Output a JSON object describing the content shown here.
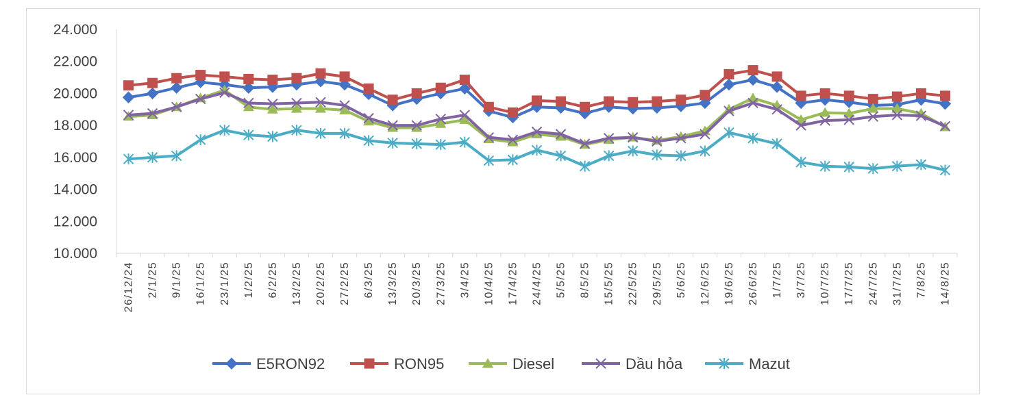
{
  "chart_data": {
    "type": "line",
    "title": "",
    "xlabel": "",
    "ylabel": "",
    "ylim": [
      10000,
      24000
    ],
    "yticks": [
      "10.000",
      "12.000",
      "14.000",
      "16.000",
      "18.000",
      "20.000",
      "22.000",
      "24.000"
    ],
    "ytick_values": [
      10000,
      12000,
      14000,
      16000,
      18000,
      20000,
      22000,
      24000
    ],
    "grid": false,
    "legend_position": "bottom",
    "categories": [
      "26/12/24",
      "2/1/25",
      "9/1/25",
      "16/1/25",
      "23/1/25",
      "1/2/25",
      "6/2/25",
      "13/2/25",
      "20/2/25",
      "27/2/25",
      "6/3/25",
      "13/3/25",
      "20/3/25",
      "27/3/25",
      "3/4/25",
      "10/4/25",
      "17/4/25",
      "24/4/25",
      "5/5/25",
      "8/5/25",
      "15/5/25",
      "22/5/25",
      "29/5/25",
      "5/6/25",
      "12/6/25",
      "19/6/25",
      "26/6/25",
      "1/7/25",
      "3/7/25",
      "10/7/25",
      "17/7/25",
      "24/7/25",
      "31/7/25",
      "7/8/25",
      "14/8/25"
    ],
    "series": [
      {
        "name": "E5RON92",
        "color": "#4472c4",
        "marker": "diamond",
        "values": [
          19750,
          20000,
          20350,
          20700,
          20550,
          20350,
          20400,
          20550,
          20750,
          20550,
          19950,
          19250,
          19650,
          20000,
          20300,
          18900,
          18500,
          19150,
          19100,
          18750,
          19150,
          19050,
          19100,
          19200,
          19400,
          20550,
          20850,
          20400,
          19400,
          19600,
          19450,
          19250,
          19300,
          19600,
          19350
        ]
      },
      {
        "name": "RON95",
        "color": "#c0504d",
        "marker": "square",
        "values": [
          20500,
          20650,
          20950,
          21150,
          21050,
          20900,
          20850,
          20950,
          21250,
          21050,
          20300,
          19600,
          20000,
          20350,
          20850,
          19150,
          18800,
          19550,
          19500,
          19150,
          19500,
          19450,
          19500,
          19600,
          19900,
          21200,
          21450,
          21050,
          19850,
          20000,
          19850,
          19650,
          19800,
          20000,
          19850
        ]
      },
      {
        "name": "Diesel",
        "color": "#9bbb59",
        "marker": "triangle",
        "values": [
          18550,
          18650,
          19150,
          19700,
          20200,
          19150,
          19000,
          19050,
          19050,
          18950,
          18250,
          17850,
          17850,
          18100,
          18350,
          17150,
          16950,
          17450,
          17300,
          16800,
          17100,
          17250,
          17050,
          17300,
          17650,
          19000,
          19700,
          19250,
          18350,
          18800,
          18750,
          19050,
          19050,
          18750,
          17900
        ]
      },
      {
        "name": "Dầu hỏa",
        "color": "#8064a2",
        "marker": "x",
        "values": [
          18650,
          18750,
          19150,
          19650,
          20050,
          19400,
          19350,
          19400,
          19450,
          19250,
          18450,
          18000,
          18000,
          18400,
          18650,
          17250,
          17100,
          17600,
          17450,
          16850,
          17200,
          17250,
          17000,
          17200,
          17450,
          18900,
          19400,
          19000,
          18000,
          18300,
          18350,
          18550,
          18650,
          18600,
          17950
        ]
      },
      {
        "name": "Mazut",
        "color": "#4bacc6",
        "marker": "asterisk",
        "values": [
          15900,
          16000,
          16100,
          17100,
          17700,
          17400,
          17300,
          17700,
          17500,
          17500,
          17050,
          16900,
          16850,
          16800,
          16950,
          15800,
          15850,
          16450,
          16100,
          15450,
          16100,
          16400,
          16150,
          16100,
          16400,
          17550,
          17200,
          16850,
          15700,
          15450,
          15400,
          15300,
          15450,
          15550,
          15200
        ]
      }
    ]
  }
}
